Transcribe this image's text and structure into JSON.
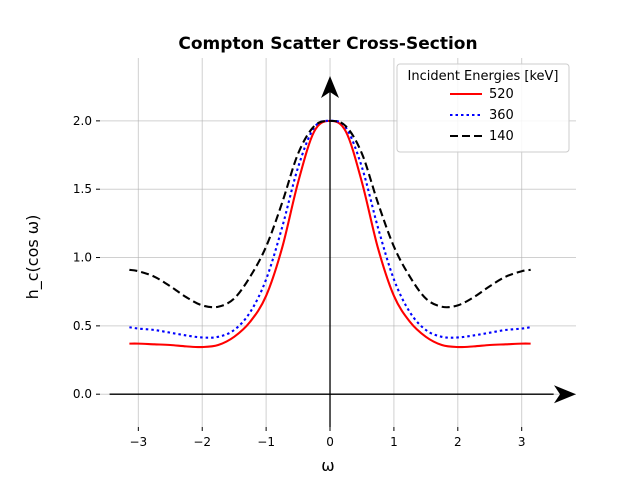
{
  "chart_data": {
    "type": "line",
    "title": "Compton Scatter Cross-Section",
    "xlabel": "ω",
    "ylabel": "h_c(cos ω)",
    "xlim": [
      -3.6,
      3.85
    ],
    "ylim": [
      -0.24,
      2.46
    ],
    "xticks": [
      -3,
      -2,
      -1,
      0,
      1,
      2,
      3
    ],
    "xtick_labels": [
      "−3",
      "−2",
      "−1",
      "0",
      "1",
      "2",
      "3"
    ],
    "yticks": [
      0.0,
      0.5,
      1.0,
      1.5,
      2.0
    ],
    "ytick_labels": [
      "0.0",
      "0.5",
      "1.0",
      "1.5",
      "2.0"
    ],
    "grid": true,
    "legend": {
      "title": "Incident Energies [keV]",
      "placement": "top-right"
    },
    "series": [
      {
        "name": "520",
        "color": "#ff0000",
        "style": "solid",
        "x": [
          -3.14,
          -3.0,
          -2.75,
          -2.5,
          -2.25,
          -2.0,
          -1.75,
          -1.5,
          -1.25,
          -1.0,
          -0.75,
          -0.5,
          -0.25,
          0.0,
          0.25,
          0.5,
          0.75,
          1.0,
          1.25,
          1.5,
          1.75,
          2.0,
          2.25,
          2.5,
          2.75,
          3.0,
          3.14
        ],
        "y": [
          0.37,
          0.37,
          0.365,
          0.36,
          0.35,
          0.345,
          0.36,
          0.42,
          0.53,
          0.72,
          1.07,
          1.55,
          1.92,
          2.0,
          1.92,
          1.55,
          1.07,
          0.72,
          0.53,
          0.42,
          0.36,
          0.345,
          0.35,
          0.36,
          0.365,
          0.37,
          0.37
        ]
      },
      {
        "name": "360",
        "color": "#0000ff",
        "style": "dotted",
        "x": [
          -3.14,
          -3.0,
          -2.75,
          -2.5,
          -2.25,
          -2.0,
          -1.75,
          -1.5,
          -1.25,
          -1.0,
          -0.75,
          -0.5,
          -0.25,
          0.0,
          0.25,
          0.5,
          0.75,
          1.0,
          1.25,
          1.5,
          1.75,
          2.0,
          2.25,
          2.5,
          2.75,
          3.0,
          3.14
        ],
        "y": [
          0.49,
          0.48,
          0.47,
          0.45,
          0.43,
          0.415,
          0.42,
          0.47,
          0.6,
          0.84,
          1.22,
          1.66,
          1.95,
          2.0,
          1.95,
          1.66,
          1.22,
          0.84,
          0.6,
          0.47,
          0.42,
          0.415,
          0.43,
          0.45,
          0.47,
          0.48,
          0.49
        ]
      },
      {
        "name": "140",
        "color": "#000000",
        "style": "dashed",
        "x": [
          -3.14,
          -3.0,
          -2.75,
          -2.5,
          -2.25,
          -2.0,
          -1.75,
          -1.5,
          -1.25,
          -1.0,
          -0.75,
          -0.5,
          -0.25,
          0.0,
          0.25,
          0.5,
          0.75,
          1.0,
          1.25,
          1.5,
          1.75,
          2.0,
          2.25,
          2.5,
          2.75,
          3.0,
          3.14
        ],
        "y": [
          0.91,
          0.9,
          0.86,
          0.79,
          0.71,
          0.65,
          0.64,
          0.7,
          0.86,
          1.08,
          1.4,
          1.76,
          1.96,
          2.0,
          1.96,
          1.76,
          1.4,
          1.08,
          0.86,
          0.7,
          0.64,
          0.65,
          0.71,
          0.79,
          0.86,
          0.9,
          0.91
        ]
      }
    ]
  }
}
